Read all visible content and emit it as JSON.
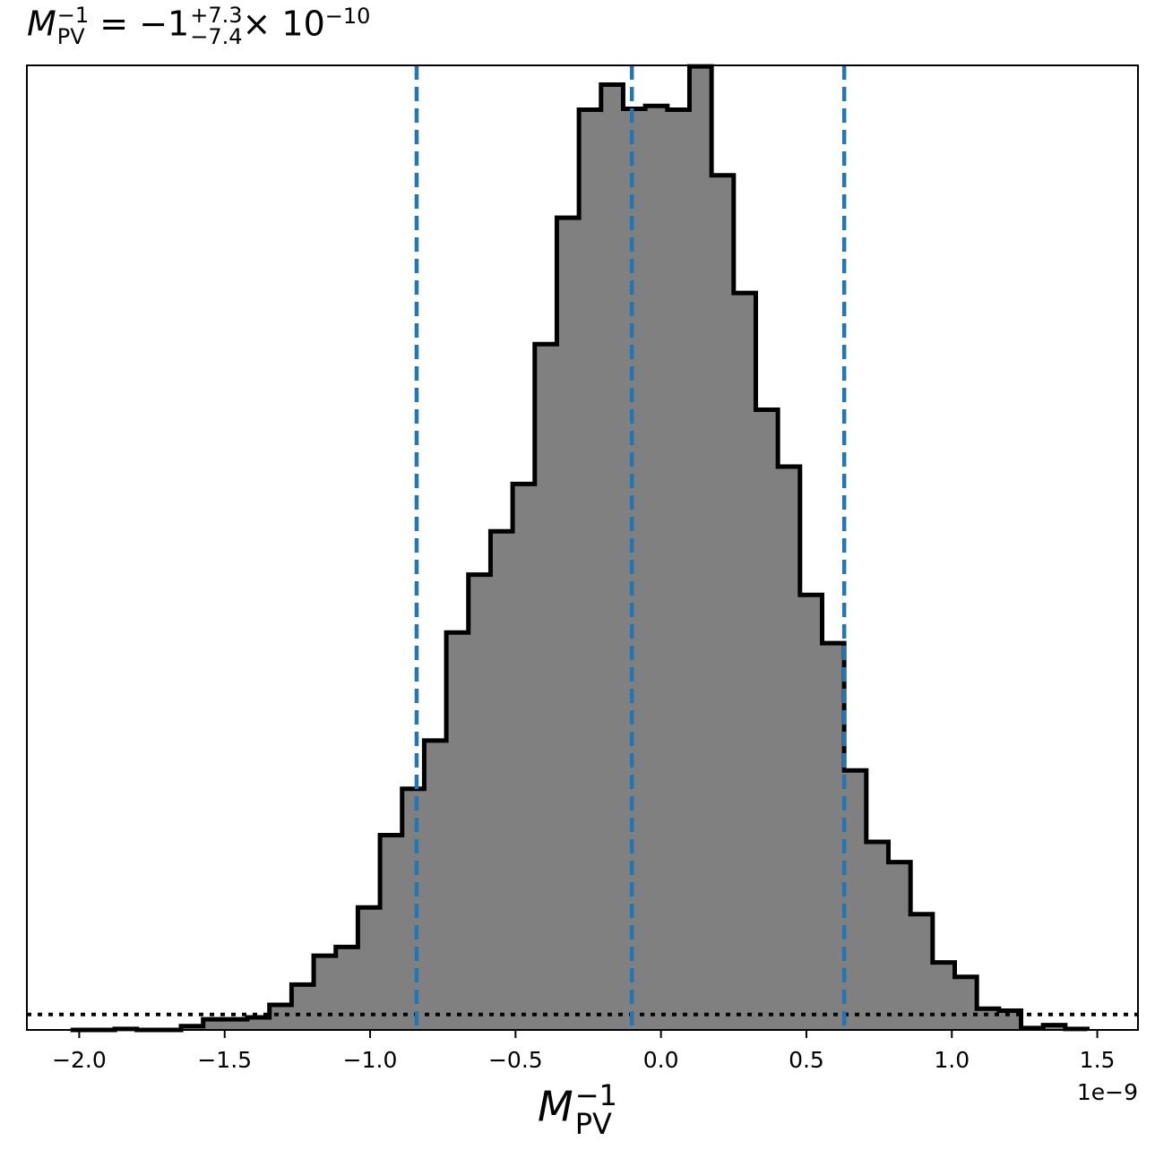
{
  "chart_data": {
    "type": "histogram",
    "title": {
      "symbol": "M",
      "symbol_sub": "PV",
      "symbol_sup": "−1",
      "equals": "= −1",
      "err_plus": "+7.3",
      "err_minus": "−7.4",
      "times": "× 10",
      "exponent": "−10"
    },
    "xlabel": {
      "symbol": "M",
      "sub": "PV",
      "sup": "−1"
    },
    "x_offset_label": "1e−9",
    "x_scale": 1e-09,
    "xlim": [
      -2.18,
      1.64
    ],
    "ylim": [
      0,
      1.0
    ],
    "x_ticks": [
      -2.0,
      -1.5,
      -1.0,
      -0.5,
      0.0,
      0.5,
      1.0,
      1.5
    ],
    "x_tick_labels": [
      "−2.0",
      "−1.5",
      "−1.0",
      "−0.5",
      "0.0",
      "0.5",
      "1.0",
      "1.5"
    ],
    "y_ticks_visible": false,
    "bin_edges": [
      -2.03,
      -1.954,
      -1.878,
      -1.802,
      -1.726,
      -1.65,
      -1.574,
      -1.498,
      -1.422,
      -1.346,
      -1.27,
      -1.194,
      -1.118,
      -1.042,
      -0.966,
      -0.89,
      -0.814,
      -0.738,
      -0.662,
      -0.586,
      -0.51,
      -0.434,
      -0.358,
      -0.282,
      -0.206,
      -0.13,
      -0.054,
      0.022,
      0.098,
      0.174,
      0.25,
      0.326,
      0.402,
      0.478,
      0.554,
      0.63,
      0.706,
      0.782,
      0.858,
      0.934,
      1.01,
      1.086,
      1.162,
      1.238,
      1.314,
      1.39,
      1.466
    ],
    "counts": [
      0.0,
      0.0,
      0.001,
      0.0,
      0.0,
      0.004,
      0.011,
      0.011,
      0.013,
      0.026,
      0.047,
      0.077,
      0.086,
      0.127,
      0.202,
      0.25,
      0.3,
      0.412,
      0.472,
      0.517,
      0.566,
      0.711,
      0.842,
      0.954,
      0.98,
      0.955,
      0.958,
      0.954,
      0.999,
      0.886,
      0.764,
      0.643,
      0.584,
      0.451,
      0.401,
      0.269,
      0.195,
      0.174,
      0.12,
      0.07,
      0.055,
      0.022,
      0.02,
      0.002,
      0.005,
      0.001
    ],
    "vlines": [
      {
        "x": -0.84,
        "style": "dashed",
        "color": "#1f77b4"
      },
      {
        "x": -0.1,
        "style": "dashed",
        "color": "#1f77b4"
      },
      {
        "x": 0.63,
        "style": "dashed",
        "color": "#1f77b4"
      }
    ],
    "hlines": [
      {
        "y": 0.016,
        "style": "dotted",
        "color": "#000000"
      }
    ],
    "fill_color": "#808080",
    "edge_color": "#000000"
  }
}
